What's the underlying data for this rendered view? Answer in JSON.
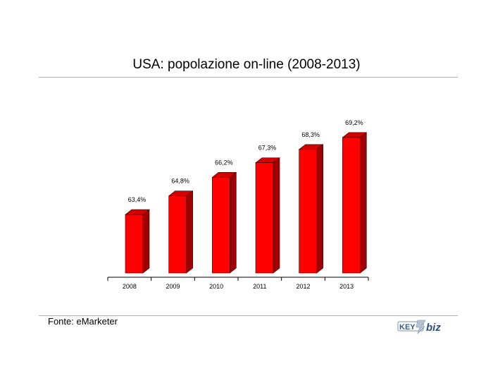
{
  "chart_data": {
    "type": "bar",
    "title": "USA: popolazione on-line (2008-2013)",
    "categories": [
      "2008",
      "2009",
      "2010",
      "2011",
      "2012",
      "2013"
    ],
    "values": [
      63.4,
      64.8,
      66.2,
      67.3,
      68.3,
      69.2
    ],
    "value_labels": [
      "63,4%",
      "64,8%",
      "66,2%",
      "67,3%",
      "68,3%",
      "69,2%"
    ],
    "bar_color": "#ff0000",
    "bar_side_color": "#a00000",
    "bar_top_color": "#d40000",
    "style": "3d",
    "grid": false,
    "legend": "none"
  },
  "source": "Fonte: eMarketer",
  "logo": {
    "text": "KEY4biz"
  }
}
